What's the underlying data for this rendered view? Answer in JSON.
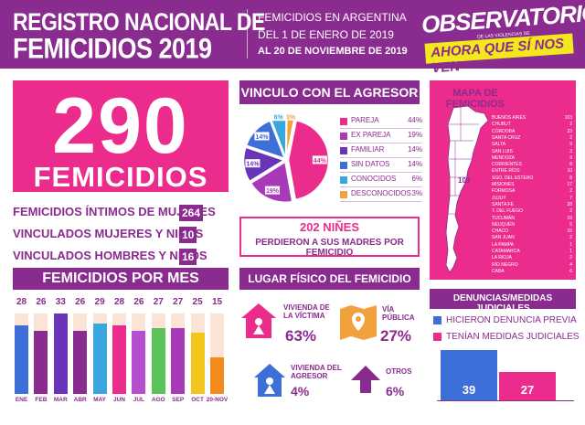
{
  "header": {
    "title_line1": "REGISTRO NACIONAL DE",
    "title_line2": "FEMICIDIOS 2019",
    "subtitle_line1": "FEMICIDIOS EN ARGENTINA",
    "subtitle_line2": "DEL 1 DE ENERO DE 2019",
    "subtitle_line3": "AL 20 DE NOVIEMBRE DE 2019",
    "logo_name": "OBSERVATORIO",
    "logo_tagline": "DE LAS VIOLENCIAS DE GÉNERO",
    "logo_slogan": "AHORA QUE SÍ NOS VEN"
  },
  "summary": {
    "total": "290",
    "total_label": "FEMICIDIOS",
    "stats": [
      {
        "label": "FEMICIDIOS ÍNTIMOS DE MUJERES",
        "value": "264"
      },
      {
        "label": "VINCULADOS MUJERES Y NIÑAS",
        "value": "10"
      },
      {
        "label": "VINCULADOS HOMBRES Y NIÑOS",
        "value": "16"
      }
    ]
  },
  "monthly": {
    "title": "FEMICIDIOS POR MES",
    "months": [
      {
        "label": "ENE",
        "value": 28,
        "color": "#3e6fd8"
      },
      {
        "label": "FEB",
        "value": 26,
        "color": "#8a2b8f"
      },
      {
        "label": "MAR",
        "value": 33,
        "color": "#6a34b8"
      },
      {
        "label": "ABR",
        "value": 26,
        "color": "#8a2b8f"
      },
      {
        "label": "MAY",
        "value": 29,
        "color": "#3aa6e0"
      },
      {
        "label": "JUN",
        "value": 28,
        "color": "#ec2c8c"
      },
      {
        "label": "JUL",
        "value": 26,
        "color": "#b44fd0"
      },
      {
        "label": "AGO",
        "value": 27,
        "color": "#5cc35a"
      },
      {
        "label": "SEP",
        "value": 27,
        "color": "#a83ab8"
      },
      {
        "label": "OCT",
        "value": 25,
        "color": "#f2c61c"
      },
      {
        "label": "20-NOV",
        "value": 15,
        "color": "#f28a1c"
      }
    ],
    "track_color": "#fbe3d6",
    "max": 33
  },
  "vinculo": {
    "title": "VINCULO CON EL AGRESOR",
    "slices": [
      {
        "label": "PAREJA",
        "pct": 44,
        "pct_label": "44%",
        "color": "#ec2c8c"
      },
      {
        "label": "EX PAREJA",
        "pct": 19,
        "pct_label": "19%",
        "color": "#a83ab8"
      },
      {
        "label": "FAMILIAR",
        "pct": 14,
        "pct_label": "14%",
        "color": "#6a34b8"
      },
      {
        "label": "SIN DATOS",
        "pct": 14,
        "pct_label": "14%",
        "color": "#3e6fd8"
      },
      {
        "label": "CONOCIDOS",
        "pct": 6,
        "pct_label": "6%",
        "color": "#3aa6e0"
      },
      {
        "label": "DESCONOCIDOS",
        "pct": 3,
        "pct_label": "3%",
        "color": "#f2a23c"
      }
    ]
  },
  "ninos": {
    "headline": "202 NIÑES",
    "text": "PERDIERON A SUS MADRES POR FEMICIDIO"
  },
  "lugar": {
    "title": "LUGAR FÍSICO DEL FEMICIDIO",
    "places": [
      {
        "label_line1": "VIVIENDA DE",
        "label_line2": "LA VÍCTIMA",
        "pct": "63%",
        "icon": "house-woman-icon",
        "color": "#ec2c8c"
      },
      {
        "label_line1": "VÍA",
        "label_line2": "PÚBLICA",
        "pct": "27%",
        "icon": "map-pin-icon",
        "color": "#f2a23c"
      },
      {
        "label_line1": "VIVIENDA DEL",
        "label_line2": "AGRESOR",
        "pct": "4%",
        "icon": "house-woman-icon",
        "color": "#3e6fd8"
      },
      {
        "label_line1": "OTROS",
        "label_line2": "",
        "pct": "6%",
        "icon": "arrow-up-icon",
        "color": "#8a2b8f"
      }
    ]
  },
  "map": {
    "title": "MAPA DE FEMICIDIOS",
    "buenos_aires_value": "103",
    "provinces": [
      {
        "name": "BUENOS AIRES",
        "value": "103"
      },
      {
        "name": "CHUBUT",
        "value": "2"
      },
      {
        "name": "CÓRDOBA",
        "value": "23"
      },
      {
        "name": "SANTA CRUZ",
        "value": "2"
      },
      {
        "name": "SALTA",
        "value": "9"
      },
      {
        "name": "SAN LUIS",
        "value": "3"
      },
      {
        "name": "MENDOZA",
        "value": "9"
      },
      {
        "name": "CORRIENTES",
        "value": "8"
      },
      {
        "name": "ENTRE RÍOS",
        "value": "10"
      },
      {
        "name": "SGO. DEL ESTERO",
        "value": "8"
      },
      {
        "name": "MISIONES",
        "value": "17"
      },
      {
        "name": "FORMOSA",
        "value": "2"
      },
      {
        "name": "JUJUY",
        "value": "7"
      },
      {
        "name": "SANTA FE",
        "value": "28"
      },
      {
        "name": "T. DEL FUEGO",
        "value": "2"
      },
      {
        "name": "TUCUMÁN",
        "value": "19"
      },
      {
        "name": "NEUQUÉN",
        "value": "5"
      },
      {
        "name": "CHACO",
        "value": "15"
      },
      {
        "name": "SAN JUAN",
        "value": "2"
      },
      {
        "name": "LA PAMPA",
        "value": "1"
      },
      {
        "name": "CATAMARCA",
        "value": "1"
      },
      {
        "name": "LA RIOJA",
        "value": "2"
      },
      {
        "name": "RÍO NEGRO",
        "value": "4"
      },
      {
        "name": "CABA",
        "value": "6"
      }
    ]
  },
  "judicial": {
    "title": "DENUNCIAS/MEDIDAS JUDICIALES",
    "items": [
      {
        "label": "HICIERON DENUNCIA PREVIA",
        "value": "39",
        "color": "#3e6fd8"
      },
      {
        "label": "TENÍAN MEDIDAS JUDICIALES",
        "value": "27",
        "color": "#ec2c8c"
      }
    ]
  }
}
